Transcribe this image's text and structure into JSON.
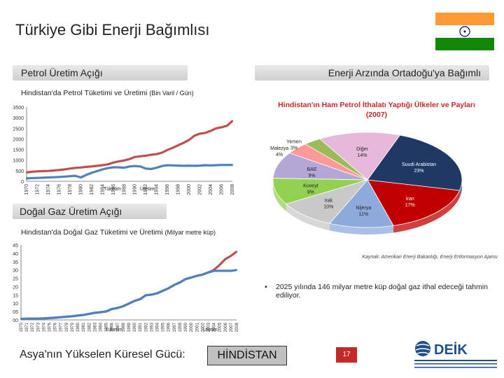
{
  "slide": {
    "title": "Türkiye Gibi Enerji Bağımlısı",
    "left_band": "Petrol Üretim Açığı",
    "right_band": "Enerji Arzında Ortadoğu'ya Bağımlı",
    "gas_band": "Doğal Gaz Üretim Açığı",
    "source": "Kaynak: Amerikan Enerji Bakanlığı, Enerji Enformasyon Ajansı",
    "bullet": "2025 yılında 146 milyar metre küp doğal gaz ithal edeceği tahmin ediliyor.",
    "footer_left": "Asya'nın Yükselen Küresel Gücü:",
    "footer_right": "HİNDİSTAN",
    "page_number": "17",
    "colors": {
      "consumption": "#c0504d",
      "production": "#4f81bd",
      "flag_saffron": "#ff9933",
      "flag_green": "#138808",
      "chakra": "#000080",
      "page_badge": "#c62828"
    },
    "icons": [
      "india-flag-icon",
      "deik-logo-icon"
    ]
  },
  "chart_data": [
    {
      "type": "line",
      "title": "Hindistan'da Petrol Tüketimi ve Üretimi",
      "title_unit": "(Bin Varil / Gün)",
      "x": [
        1970,
        1971,
        1972,
        1973,
        1974,
        1975,
        1976,
        1977,
        1978,
        1979,
        1980,
        1981,
        1982,
        1983,
        1984,
        1985,
        1986,
        1987,
        1988,
        1989,
        1990,
        1991,
        1992,
        1993,
        1994,
        1995,
        1996,
        1997,
        1998,
        1999,
        2000,
        2001,
        2002,
        2003,
        2004,
        2005,
        2006,
        2007,
        2008
      ],
      "x_tick_labels": [
        "1970",
        "1972",
        "1974",
        "1976",
        "1978",
        "1980",
        "1982",
        "1984",
        "1986",
        "1988",
        "1990",
        "1992",
        "1994",
        "1996",
        "1998",
        "2000",
        "2002",
        "2004",
        "2006",
        "2008"
      ],
      "ylim": [
        0,
        3500
      ],
      "y_ticks": [
        0,
        500,
        1000,
        1500,
        2000,
        2500,
        3000,
        3500
      ],
      "series": [
        {
          "name": "Tüketim",
          "values": [
            420,
            450,
            470,
            480,
            490,
            510,
            530,
            560,
            600,
            630,
            650,
            680,
            700,
            730,
            760,
            800,
            880,
            940,
            980,
            1050,
            1150,
            1180,
            1210,
            1250,
            1280,
            1350,
            1480,
            1580,
            1700,
            1820,
            1950,
            2150,
            2250,
            2280,
            2380,
            2500,
            2550,
            2620,
            2850
          ]
        },
        {
          "name": "Üretim",
          "values": [
            140,
            150,
            160,
            170,
            180,
            190,
            200,
            220,
            240,
            260,
            180,
            300,
            400,
            480,
            560,
            620,
            660,
            660,
            640,
            700,
            720,
            700,
            600,
            580,
            640,
            720,
            760,
            750,
            740,
            730,
            740,
            730,
            740,
            760,
            750,
            760,
            770,
            770,
            770
          ]
        }
      ],
      "series_labels": [
        "Tüketim",
        "Üretim"
      ],
      "grid": false
    },
    {
      "type": "line",
      "title": "Hindistan'da Doğal Gaz Tüketimi ve Üretimi",
      "title_unit": "(Milyar metre küp)",
      "x": [
        1970,
        1971,
        1972,
        1973,
        1974,
        1975,
        1976,
        1977,
        1978,
        1979,
        1980,
        1981,
        1982,
        1983,
        1984,
        1985,
        1986,
        1987,
        1988,
        1989,
        1990,
        1991,
        1992,
        1993,
        1994,
        1995,
        1996,
        1997,
        1998,
        1999,
        2000,
        2001,
        2002,
        2003,
        2004,
        2005,
        2006,
        2007,
        2008
      ],
      "x_tick_labels": [
        "1970",
        "1971",
        "1972",
        "1973",
        "1974",
        "1975",
        "1976",
        "1977",
        "1978",
        "1979",
        "1980",
        "1981",
        "1982",
        "1983",
        "1984",
        "1985",
        "1986",
        "1987",
        "1988",
        "1989",
        "1990",
        "1991",
        "1992",
        "1993",
        "1994",
        "1995",
        "1996",
        "1997",
        "1998",
        "1999",
        "2000",
        "2001",
        "2002",
        "2003",
        "2004",
        "2005",
        "2006",
        "2007",
        "2008"
      ],
      "ylim": [
        0,
        45
      ],
      "y_ticks": [
        0,
        5,
        10,
        15,
        20,
        25,
        30,
        35,
        40,
        45
      ],
      "y_tick_labels": [
        "00",
        "05",
        "10",
        "15",
        "20",
        "25",
        "30",
        "35",
        "40",
        "45"
      ],
      "series": [
        {
          "name": "Tüketim",
          "values": [
            0.6,
            0.7,
            0.8,
            0.8,
            0.9,
            1.1,
            1.3,
            1.6,
            1.9,
            2.2,
            2.6,
            3.0,
            3.6,
            4.3,
            4.6,
            5.1,
            6.5,
            7.2,
            8.2,
            9.8,
            11.4,
            12.5,
            14.8,
            15.2,
            16.0,
            17.5,
            19.0,
            21.0,
            22.5,
            24.5,
            25.5,
            26.5,
            27.2,
            28.5,
            30.0,
            33.0,
            36.5,
            38.5,
            41.0
          ]
        },
        {
          "name": "Üretim",
          "values": [
            0.6,
            0.7,
            0.8,
            0.8,
            0.9,
            1.1,
            1.3,
            1.6,
            1.9,
            2.2,
            2.6,
            3.0,
            3.6,
            4.3,
            4.6,
            5.1,
            6.5,
            7.2,
            8.2,
            9.8,
            11.4,
            12.5,
            14.8,
            15.2,
            16.0,
            17.5,
            19.0,
            21.0,
            22.5,
            24.5,
            25.5,
            26.5,
            27.2,
            28.5,
            29.5,
            29.5,
            29.5,
            29.5,
            30.0
          ]
        }
      ],
      "series_labels": [
        "Tüketim",
        "Üretim"
      ],
      "grid": false
    },
    {
      "type": "pie",
      "title": "Hindistan'ın Ham Petrol İthalatı Yaptığı Ülkeler ve Payları (2007)",
      "slices": [
        {
          "label": "Suudi Arabistan",
          "value": 23,
          "color": "#1f3864"
        },
        {
          "label": "İran",
          "value": 17,
          "color": "#c00000"
        },
        {
          "label": "Nijerya",
          "value": 11,
          "color": "#8ea9db"
        },
        {
          "label": "Irak",
          "value": 10,
          "color": "#c9c9c9"
        },
        {
          "label": "Kuveyt",
          "value": 9,
          "color": "#92d050"
        },
        {
          "label": "BAE",
          "value": 9,
          "color": "#b4a7d6"
        },
        {
          "label": "Malezya",
          "value": 4,
          "color": "#ff9999"
        },
        {
          "label": "Yemen",
          "value": 3,
          "color": "#9bbb59"
        },
        {
          "label": "Diğer",
          "value": 14,
          "color": "#e6b8d9"
        }
      ],
      "label_text": [
        [
          "Suudi Arabistan",
          "23%"
        ],
        [
          "İran",
          "17%"
        ],
        [
          "Nijerya",
          "11%"
        ],
        [
          "Irak",
          "10%"
        ],
        [
          "Kuveyt",
          "9%"
        ],
        [
          "BAE",
          "9%"
        ],
        [
          "Malezya",
          "4%"
        ],
        [
          "Yemen",
          "3%"
        ],
        [
          "Diğer",
          "14%"
        ]
      ]
    }
  ]
}
